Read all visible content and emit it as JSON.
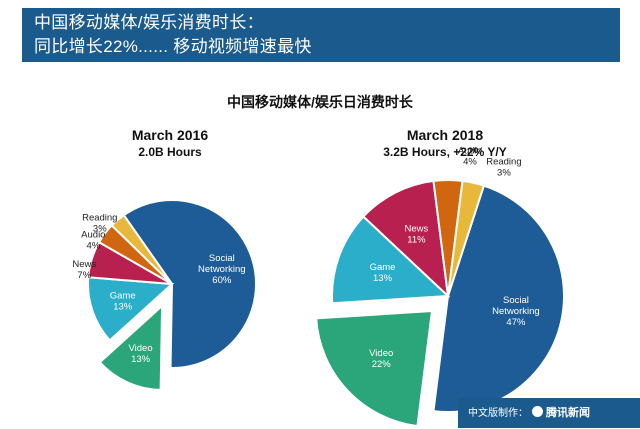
{
  "header": {
    "line1": "中国移动媒体/娱乐消费时长：",
    "line2": "同比增长22%...... 移动视频增速最快"
  },
  "chart_title": "中国移动媒体/娱乐日消费时长",
  "chart_data": [
    {
      "type": "pie",
      "title": "March 2016",
      "subtitle": "2.0B Hours",
      "categories": [
        "Social Networking",
        "Video",
        "Game",
        "News",
        "Audio",
        "Reading"
      ],
      "values": [
        60,
        13,
        13,
        7,
        4,
        3
      ],
      "labels": [
        "Social\nNetworking\n60%",
        "Video\n13%",
        "Game\n13%",
        "News\n7%",
        "Audio\n4%",
        "Reading\n3%"
      ],
      "colors": [
        "#1d5c96",
        "#2aa67a",
        "#2baec9",
        "#b8204f",
        "#d0660f",
        "#e8b83a"
      ],
      "exploded": [
        "Video"
      ]
    },
    {
      "type": "pie",
      "title": "March 2018",
      "subtitle": "3.2B Hours, +22% Y/Y",
      "categories": [
        "Social Networking",
        "Video",
        "Game",
        "News",
        "Audio",
        "Reading"
      ],
      "values": [
        47,
        22,
        13,
        11,
        4,
        3
      ],
      "labels": [
        "Social\nNetworking\n47%",
        "Video\n22%",
        "Game\n13%",
        "News\n11%",
        "Audio\n4%",
        "Reading\n3%"
      ],
      "colors": [
        "#1d5c96",
        "#2aa67a",
        "#2baec9",
        "#b8204f",
        "#d0660f",
        "#e8b83a"
      ],
      "exploded": [
        "Video"
      ]
    }
  ],
  "footer": {
    "prefix": "中文版制作：",
    "brand": "腾讯新闻"
  }
}
